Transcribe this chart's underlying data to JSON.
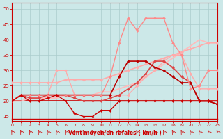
{
  "bg_color": "#cce8e8",
  "grid_color": "#aacccc",
  "xlabel": "Vent moyen/en rafales ( km/h )",
  "xlabel_color": "#cc0000",
  "tick_label_color": "#cc0000",
  "axis_color": "#cc0000",
  "xlim": [
    0,
    23
  ],
  "ylim": [
    13.5,
    52
  ],
  "yticks": [
    15,
    20,
    25,
    30,
    35,
    40,
    45,
    50
  ],
  "xticks": [
    0,
    1,
    2,
    3,
    4,
    5,
    6,
    7,
    8,
    9,
    10,
    11,
    12,
    13,
    14,
    15,
    16,
    17,
    18,
    19,
    20,
    21,
    22,
    23
  ],
  "series": [
    {
      "x": [
        0,
        1,
        2,
        3,
        4,
        5,
        6,
        7,
        8,
        9,
        10,
        11,
        12,
        13,
        14,
        15,
        16,
        17,
        18,
        19,
        20,
        21,
        22,
        23
      ],
      "y": [
        20,
        20,
        20,
        20,
        20,
        20,
        20,
        20,
        20,
        20,
        20,
        20,
        20,
        20,
        20,
        20,
        20,
        20,
        20,
        20,
        20,
        20,
        20,
        20
      ],
      "color": "#cc0000",
      "lw": 1.2,
      "marker": null,
      "ms": 0
    },
    {
      "x": [
        0,
        1,
        2,
        3,
        4,
        5,
        6,
        7,
        8,
        9,
        10,
        11,
        12,
        13,
        14,
        15,
        16,
        17,
        18,
        19,
        20,
        21,
        22,
        23
      ],
      "y": [
        20,
        20,
        21,
        21,
        21,
        21,
        22,
        22,
        22,
        22,
        23,
        23,
        24,
        25,
        26,
        28,
        30,
        32,
        34,
        36,
        38,
        40,
        39,
        39
      ],
      "color": "#ffbbbb",
      "lw": 1.3,
      "marker": null,
      "ms": 0
    },
    {
      "x": [
        0,
        1,
        2,
        3,
        4,
        5,
        6,
        7,
        8,
        9,
        10,
        11,
        12,
        13,
        14,
        15,
        16,
        17,
        18,
        19,
        20,
        21,
        22,
        23
      ],
      "y": [
        26,
        26,
        26,
        26,
        26,
        26,
        27,
        27,
        27,
        27,
        27,
        28,
        29,
        30,
        31,
        32,
        33,
        34,
        35,
        36,
        37,
        38,
        39,
        39
      ],
      "color": "#ffaaaa",
      "lw": 1.2,
      "marker": "D",
      "ms": 2.0
    },
    {
      "x": [
        0,
        1,
        2,
        3,
        4,
        5,
        6,
        7,
        8,
        9,
        10,
        11,
        12,
        13,
        14,
        15,
        16,
        17,
        18,
        19,
        20,
        21,
        22,
        23
      ],
      "y": [
        20,
        22,
        22,
        22,
        22,
        30,
        30,
        22,
        22,
        22,
        22,
        22,
        22,
        22,
        25,
        28,
        30,
        33,
        35,
        35,
        29,
        24,
        24,
        24
      ],
      "color": "#ffaaaa",
      "lw": 1.0,
      "marker": "D",
      "ms": 2.0
    },
    {
      "x": [
        0,
        1,
        2,
        3,
        4,
        5,
        6,
        7,
        8,
        9,
        10,
        11,
        12,
        13,
        14,
        15,
        16,
        17,
        18,
        19,
        20,
        21,
        22,
        23
      ],
      "y": [
        20,
        22,
        21,
        21,
        22,
        22,
        22,
        21,
        20,
        20,
        20,
        21,
        22,
        24,
        26,
        29,
        33,
        33,
        31,
        28,
        26,
        20,
        20,
        19
      ],
      "color": "#dd4444",
      "lw": 1.2,
      "marker": "D",
      "ms": 2.0
    },
    {
      "x": [
        0,
        1,
        2,
        3,
        4,
        5,
        6,
        7,
        8,
        9,
        10,
        11,
        12,
        13,
        14,
        15,
        16,
        17,
        18,
        19,
        20,
        21,
        22,
        23
      ],
      "y": [
        20,
        22,
        22,
        22,
        22,
        22,
        22,
        22,
        22,
        22,
        22,
        22,
        28,
        33,
        33,
        33,
        31,
        30,
        28,
        26,
        26,
        20,
        20,
        19
      ],
      "color": "#bb0000",
      "lw": 1.2,
      "marker": "D",
      "ms": 2.0
    },
    {
      "x": [
        0,
        1,
        2,
        3,
        4,
        5,
        6,
        7,
        8,
        9,
        10,
        11,
        12,
        13,
        14,
        15,
        16,
        17,
        18,
        19,
        20,
        21,
        22,
        23
      ],
      "y": [
        20,
        22,
        22,
        22,
        22,
        22,
        22,
        22,
        22,
        22,
        22,
        28,
        39,
        47,
        43,
        47,
        47,
        47,
        39,
        35,
        24,
        25,
        30,
        30
      ],
      "color": "#ff8888",
      "lw": 1.0,
      "marker": "D",
      "ms": 2.0
    },
    {
      "x": [
        0,
        1,
        2,
        3,
        4,
        5,
        6,
        7,
        8,
        9,
        10,
        11,
        12,
        13,
        14,
        15,
        16,
        17,
        18,
        19,
        20,
        21,
        22,
        23
      ],
      "y": [
        20,
        22,
        20,
        20,
        21,
        22,
        20,
        16,
        15,
        15,
        17,
        17,
        20,
        20,
        20,
        20,
        20,
        20,
        20,
        20,
        20,
        20,
        20,
        20
      ],
      "color": "#cc0000",
      "lw": 1.0,
      "marker": "D",
      "ms": 2.0
    }
  ]
}
